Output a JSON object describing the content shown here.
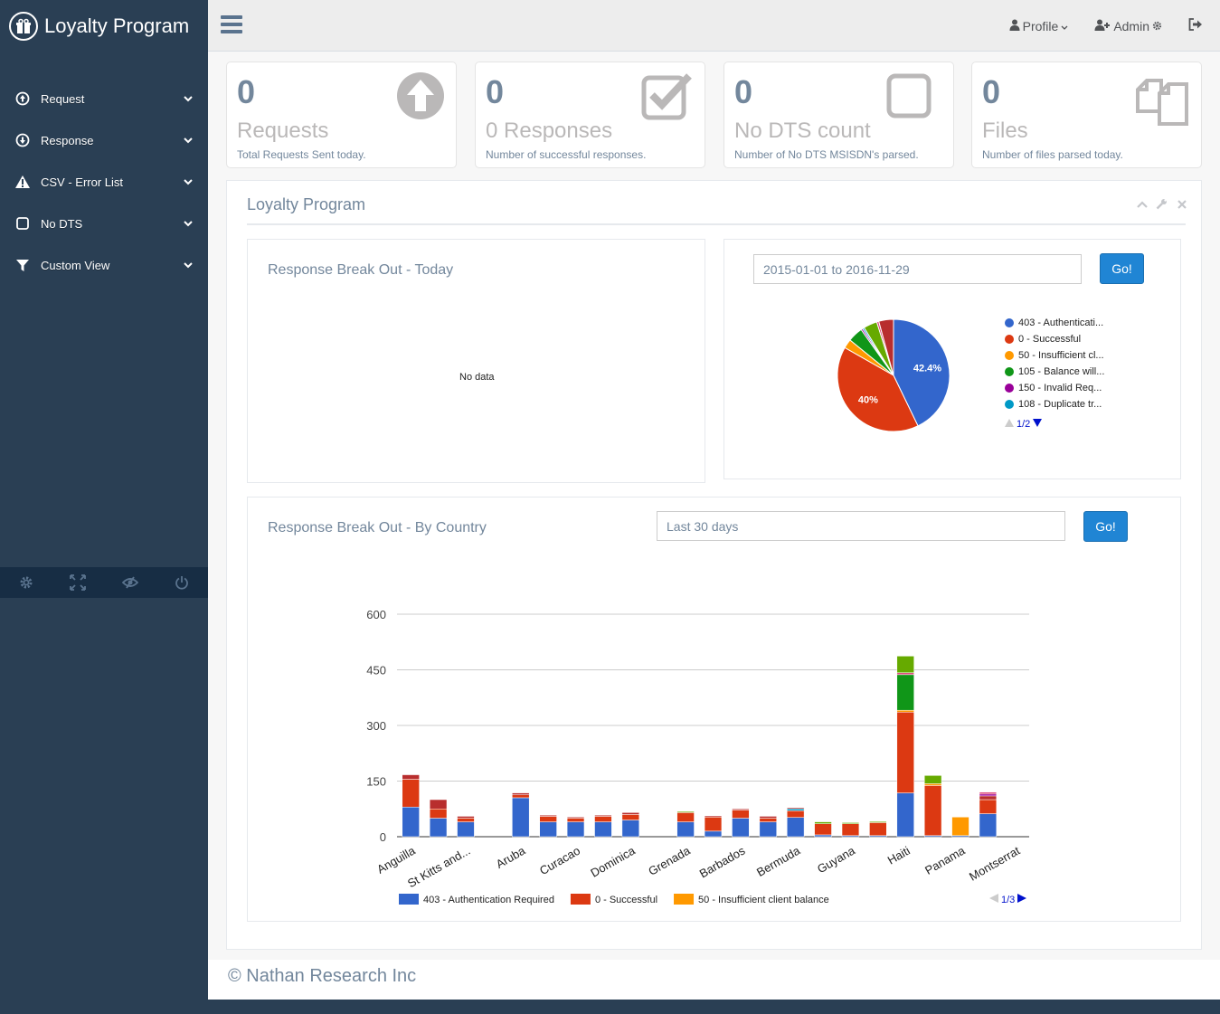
{
  "brand": {
    "title": "Loyalty Program"
  },
  "sidebar": {
    "items": [
      {
        "label": "Request",
        "icon": "arrow-circle-up-icon"
      },
      {
        "label": "Response",
        "icon": "arrow-circle-down-icon"
      },
      {
        "label": "CSV - Error List",
        "icon": "warning-icon"
      },
      {
        "label": "No DTS",
        "icon": "square-icon"
      },
      {
        "label": "Custom View",
        "icon": "filter-icon"
      }
    ],
    "footer_icons": [
      "gear-icon",
      "fullscreen-icon",
      "eye-slash-icon",
      "power-icon"
    ]
  },
  "topnav": {
    "profile_label": "Profile",
    "admin_label": "Admin"
  },
  "tiles": [
    {
      "count": "0",
      "title": "Requests",
      "desc": "Total Requests Sent today.",
      "icon": "arrow-circle-up-icon"
    },
    {
      "count": "0",
      "title": "0 Responses",
      "desc": "Number of successful responses.",
      "icon": "check-square-icon"
    },
    {
      "count": "0",
      "title": "No DTS count",
      "desc": "Number of No DTS MSISDN's parsed.",
      "icon": "square-icon"
    },
    {
      "count": "0",
      "title": "Files",
      "desc": "Number of files parsed today.",
      "icon": "files-icon"
    }
  ],
  "panel": {
    "title": "Loyalty Program",
    "today": {
      "title": "Response Break Out - Today",
      "empty_text": "No data"
    },
    "range": {
      "date_value": "2015-01-01 to 2016-11-29",
      "go_label": "Go!",
      "pager": "1/2"
    },
    "country": {
      "title": "Response Break Out - By Country",
      "date_value": "Last 30 days",
      "go_label": "Go!",
      "pager": "1/3"
    }
  },
  "footer": {
    "text": "© Nathan Research Inc"
  },
  "colors": {
    "c403": "#3366CC",
    "c0": "#DC3912",
    "c50": "#FF9900",
    "c105": "#109618",
    "c150": "#990099",
    "c108": "#0099C6",
    "c_other1": "#B82E2E",
    "c_other2": "#66AA00",
    "c_other3": "#DD4477"
  },
  "chart_data": [
    {
      "type": "pie",
      "title": "",
      "series": [
        {
          "name": "403 - Authenticati...",
          "value": 42.4,
          "color": "#3366CC",
          "label": "42.4%"
        },
        {
          "name": "0 - Successful",
          "value": 40.0,
          "color": "#DC3912",
          "label": "40%"
        },
        {
          "name": "50 - Insufficient cl...",
          "value": 2.6,
          "color": "#FF9900"
        },
        {
          "name": "105 - Balance will...",
          "value": 4.3,
          "color": "#109618"
        },
        {
          "name": "150 - Invalid Req...",
          "value": 0.5,
          "color": "#990099"
        },
        {
          "name": "108 - Duplicate tr...",
          "value": 0.5,
          "color": "#0099C6"
        },
        {
          "value": 3.9,
          "color": "#66AA00"
        },
        {
          "value": 0.6,
          "color": "#DD4477"
        },
        {
          "value": 4.2,
          "color": "#B82E2E"
        }
      ]
    },
    {
      "type": "bar",
      "stacked": true,
      "ylim": [
        0,
        600
      ],
      "yticks": [
        0,
        150,
        300,
        450,
        600
      ],
      "categories": [
        "Anguilla",
        "",
        "St Kitts and...",
        "",
        "Aruba",
        "",
        "Curacao",
        "",
        "Dominica",
        "",
        "Grenada",
        "",
        "Barbados",
        "",
        "Bermuda",
        "",
        "Guyana",
        "",
        "Haiti",
        "",
        "Panama",
        "",
        "Montserrat"
      ],
      "x_labels": [
        "Anguilla",
        "St Kitts and...",
        "Aruba",
        "Curacao",
        "Dominica",
        "Grenada",
        "Barbados",
        "Bermuda",
        "Guyana",
        "Haiti",
        "Panama",
        "Montserrat"
      ],
      "legend": [
        {
          "name": "403 - Authentication Required",
          "color": "#3366CC"
        },
        {
          "name": "0 - Successful",
          "color": "#DC3912"
        },
        {
          "name": "50 - Insufficient client balance",
          "color": "#FF9900"
        }
      ],
      "stacks": [
        [
          {
            "v": 80,
            "c": "#3366CC"
          },
          {
            "v": 75,
            "c": "#DC3912"
          },
          {
            "v": 12,
            "c": "#B82E2E"
          }
        ],
        [
          {
            "v": 50,
            "c": "#3366CC"
          },
          {
            "v": 25,
            "c": "#DC3912"
          },
          {
            "v": 25,
            "c": "#B82E2E"
          }
        ],
        [
          {
            "v": 40,
            "c": "#3366CC"
          },
          {
            "v": 10,
            "c": "#DC3912"
          },
          {
            "v": 5,
            "c": "#B82E2E"
          }
        ],
        [],
        [
          {
            "v": 105,
            "c": "#3366CC"
          },
          {
            "v": 8,
            "c": "#DC3912"
          },
          {
            "v": 5,
            "c": "#B82E2E"
          }
        ],
        [
          {
            "v": 40,
            "c": "#3366CC"
          },
          {
            "v": 15,
            "c": "#DC3912"
          },
          {
            "v": 3,
            "c": "#B82E2E"
          }
        ],
        [
          {
            "v": 40,
            "c": "#3366CC"
          },
          {
            "v": 10,
            "c": "#DC3912"
          },
          {
            "v": 3,
            "c": "#B82E2E"
          }
        ],
        [
          {
            "v": 40,
            "c": "#3366CC"
          },
          {
            "v": 15,
            "c": "#DC3912"
          },
          {
            "v": 3,
            "c": "#B82E2E"
          }
        ],
        [
          {
            "v": 45,
            "c": "#3366CC"
          },
          {
            "v": 15,
            "c": "#DC3912"
          },
          {
            "v": 5,
            "c": "#B82E2E"
          }
        ],
        [],
        [
          {
            "v": 40,
            "c": "#3366CC"
          },
          {
            "v": 25,
            "c": "#DC3912"
          },
          {
            "v": 3,
            "c": "#66AA00"
          }
        ],
        [
          {
            "v": 15,
            "c": "#3366CC"
          },
          {
            "v": 38,
            "c": "#DC3912"
          },
          {
            "v": 3,
            "c": "#B82E2E"
          }
        ],
        [
          {
            "v": 50,
            "c": "#3366CC"
          },
          {
            "v": 22,
            "c": "#DC3912"
          },
          {
            "v": 3,
            "c": "#B82E2E"
          }
        ],
        [
          {
            "v": 40,
            "c": "#3366CC"
          },
          {
            "v": 10,
            "c": "#DC3912"
          },
          {
            "v": 5,
            "c": "#B82E2E"
          }
        ],
        [
          {
            "v": 52,
            "c": "#3366CC"
          },
          {
            "v": 18,
            "c": "#DC3912"
          },
          {
            "v": 5,
            "c": "#0099C6"
          },
          {
            "v": 3,
            "c": "#B82E2E"
          }
        ],
        [
          {
            "v": 5,
            "c": "#3366CC"
          },
          {
            "v": 30,
            "c": "#DC3912"
          },
          {
            "v": 5,
            "c": "#66AA00"
          }
        ],
        [
          {
            "v": 3,
            "c": "#3366CC"
          },
          {
            "v": 32,
            "c": "#DC3912"
          },
          {
            "v": 3,
            "c": "#66AA00"
          }
        ],
        [
          {
            "v": 3,
            "c": "#3366CC"
          },
          {
            "v": 35,
            "c": "#DC3912"
          },
          {
            "v": 3,
            "c": "#66AA00"
          }
        ],
        [
          {
            "v": 118,
            "c": "#3366CC"
          },
          {
            "v": 218,
            "c": "#DC3912"
          },
          {
            "v": 5,
            "c": "#FF9900"
          },
          {
            "v": 96,
            "c": "#109618"
          },
          {
            "v": 5,
            "c": "#DD4477"
          },
          {
            "v": 45,
            "c": "#66AA00"
          }
        ],
        [
          {
            "v": 3,
            "c": "#3366CC"
          },
          {
            "v": 135,
            "c": "#DC3912"
          },
          {
            "v": 5,
            "c": "#FF9900"
          },
          {
            "v": 22,
            "c": "#66AA00"
          }
        ],
        [
          {
            "v": 3,
            "c": "#3366CC"
          },
          {
            "v": 50,
            "c": "#FF9900"
          }
        ],
        [
          {
            "v": 62,
            "c": "#3366CC"
          },
          {
            "v": 38,
            "c": "#DC3912"
          },
          {
            "v": 10,
            "c": "#B82E2E"
          },
          {
            "v": 5,
            "c": "#990099"
          },
          {
            "v": 5,
            "c": "#DD4477"
          }
        ],
        []
      ]
    }
  ]
}
